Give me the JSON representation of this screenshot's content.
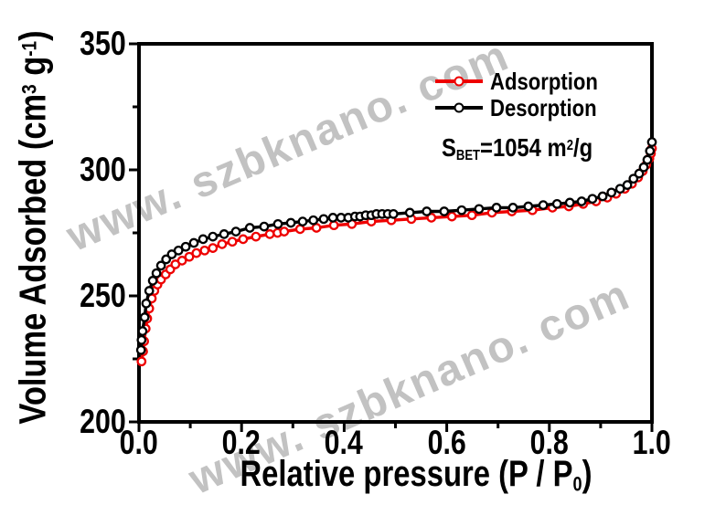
{
  "watermark": {
    "text": "www. szbknano. com",
    "color": "#c2c2c2"
  },
  "annotation": {
    "s": "S",
    "s_sub": "BET",
    "mid": "=1054 m",
    "sup": "2",
    "end": "/g"
  },
  "axes": {
    "y_title": {
      "pre": "Volume Adsorbed (cm",
      "sup1": "3",
      "mid": " g",
      "sup2": "-1",
      "end": ")"
    },
    "x_title": {
      "pre": "Relative pressure (P / P",
      "sub": "0",
      "end": ")"
    },
    "y_tick_labels": [
      "350",
      "300",
      "250",
      "200"
    ],
    "x_tick_labels": [
      "0.0",
      "0.2",
      "0.4",
      "0.6",
      "0.8",
      "1.0"
    ]
  },
  "colors": {
    "adsorption": "#ee0000",
    "desorption": "#000000",
    "axis": "#000000",
    "background": "#ffffff",
    "watermark": "#c2c2c2"
  },
  "chart_data": {
    "type": "line",
    "title": "",
    "xlabel": "Relative pressure (P / P0)",
    "ylabel": "Volume Adsorbed (cm3 g-1)",
    "xlim": [
      0.0,
      1.0
    ],
    "ylim": [
      200,
      350
    ],
    "x_major_ticks": [
      0.0,
      0.2,
      0.4,
      0.6,
      0.8,
      1.0
    ],
    "x_minor_ticks": [
      0.1,
      0.3,
      0.5,
      0.7,
      0.9
    ],
    "y_major_ticks": [
      200,
      250,
      300,
      350
    ],
    "y_minor_ticks": [
      225,
      275,
      325
    ],
    "grid": false,
    "legend_position": "upper-right-inside",
    "annotation_text": "SBET=1054 m2/g",
    "marker": "open-circle",
    "series": [
      {
        "name": "Adsorption",
        "color": "#ee0000",
        "points": [
          [
            0.005,
            224
          ],
          [
            0.008,
            228
          ],
          [
            0.01,
            232
          ],
          [
            0.013,
            237
          ],
          [
            0.016,
            241
          ],
          [
            0.02,
            245
          ],
          [
            0.025,
            249
          ],
          [
            0.03,
            252
          ],
          [
            0.036,
            254.5
          ],
          [
            0.043,
            256.5
          ],
          [
            0.052,
            258.5
          ],
          [
            0.061,
            260.5
          ],
          [
            0.071,
            262.5
          ],
          [
            0.084,
            264
          ],
          [
            0.098,
            265.5
          ],
          [
            0.112,
            267
          ],
          [
            0.128,
            268
          ],
          [
            0.144,
            269
          ],
          [
            0.162,
            270.5
          ],
          [
            0.182,
            271.5
          ],
          [
            0.203,
            272.5
          ],
          [
            0.228,
            273.5
          ],
          [
            0.255,
            274.5
          ],
          [
            0.27,
            275
          ],
          [
            0.283,
            275.5
          ],
          [
            0.314,
            276.5
          ],
          [
            0.346,
            277
          ],
          [
            0.38,
            278
          ],
          [
            0.415,
            278.5
          ],
          [
            0.453,
            279.5
          ],
          [
            0.492,
            280
          ],
          [
            0.531,
            280.5
          ],
          [
            0.57,
            281
          ],
          [
            0.61,
            281.5
          ],
          [
            0.649,
            282
          ],
          [
            0.688,
            283
          ],
          [
            0.727,
            283.5
          ],
          [
            0.767,
            284
          ],
          [
            0.806,
            285
          ],
          [
            0.838,
            285.5
          ],
          [
            0.866,
            286.5
          ],
          [
            0.891,
            287.5
          ],
          [
            0.913,
            289
          ],
          [
            0.93,
            290.5
          ],
          [
            0.947,
            292.5
          ],
          [
            0.961,
            294.5
          ],
          [
            0.973,
            297
          ],
          [
            0.982,
            299.5
          ],
          [
            0.989,
            302
          ],
          [
            0.995,
            304.5
          ],
          [
            0.998,
            306.5
          ],
          [
            1.0,
            308.5
          ]
        ]
      },
      {
        "name": "Desorption",
        "color": "#000000",
        "points": [
          [
            0.004,
            228.5
          ],
          [
            0.005,
            232.5
          ],
          [
            0.007,
            236
          ],
          [
            0.011,
            241.5
          ],
          [
            0.014,
            247
          ],
          [
            0.02,
            252
          ],
          [
            0.027,
            256
          ],
          [
            0.034,
            259
          ],
          [
            0.043,
            262
          ],
          [
            0.053,
            264.5
          ],
          [
            0.064,
            266.5
          ],
          [
            0.077,
            268
          ],
          [
            0.091,
            269.5
          ],
          [
            0.107,
            271
          ],
          [
            0.125,
            272.5
          ],
          [
            0.144,
            273.5
          ],
          [
            0.166,
            274.5
          ],
          [
            0.189,
            275.5
          ],
          [
            0.216,
            277
          ],
          [
            0.244,
            277.5
          ],
          [
            0.271,
            278.5
          ],
          [
            0.296,
            279
          ],
          [
            0.319,
            279.5
          ],
          [
            0.34,
            280
          ],
          [
            0.36,
            280.5
          ],
          [
            0.378,
            281
          ],
          [
            0.394,
            281
          ],
          [
            0.408,
            281
          ],
          [
            0.421,
            281.5
          ],
          [
            0.431,
            281.5
          ],
          [
            0.442,
            282
          ],
          [
            0.453,
            282
          ],
          [
            0.463,
            282.5
          ],
          [
            0.474,
            282.5
          ],
          [
            0.485,
            282.5
          ],
          [
            0.496,
            282.5
          ],
          [
            0.528,
            283
          ],
          [
            0.561,
            283.5
          ],
          [
            0.595,
            283.5
          ],
          [
            0.629,
            284
          ],
          [
            0.663,
            284.5
          ],
          [
            0.697,
            285
          ],
          [
            0.729,
            285
          ],
          [
            0.759,
            285.5
          ],
          [
            0.788,
            286
          ],
          [
            0.815,
            286.5
          ],
          [
            0.84,
            287
          ],
          [
            0.863,
            287.5
          ],
          [
            0.884,
            288.5
          ],
          [
            0.904,
            289.5
          ],
          [
            0.921,
            291
          ],
          [
            0.938,
            292.5
          ],
          [
            0.952,
            294
          ],
          [
            0.964,
            296.5
          ],
          [
            0.975,
            298.5
          ],
          [
            0.984,
            301
          ],
          [
            0.991,
            304
          ],
          [
            0.996,
            307.5
          ],
          [
            1.0,
            311
          ]
        ]
      }
    ]
  }
}
